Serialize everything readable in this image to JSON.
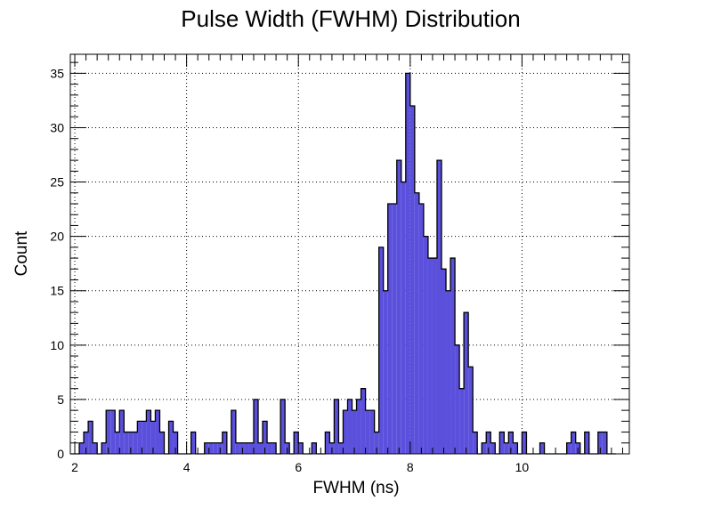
{
  "chart_data": {
    "type": "bar",
    "title": "Pulse Width (FWHM) Distribution",
    "xlabel": "FWHM (ns)",
    "ylabel": "Count",
    "xlim": [
      1.92,
      11.92
    ],
    "ylim": [
      0,
      36.75
    ],
    "grid": true,
    "legend": "none",
    "bin_width": 0.08,
    "x_ticks": [
      2,
      4,
      6,
      8,
      10
    ],
    "y_ticks": [
      0,
      5,
      10,
      15,
      20,
      25,
      30,
      35
    ],
    "x_tick_labels": [
      "2",
      "4",
      "6",
      "8",
      "10"
    ],
    "y_tick_labels": [
      "0",
      "5",
      "10",
      "15",
      "20",
      "25",
      "30",
      "35"
    ],
    "bins": [
      [
        1.92,
        0
      ],
      [
        2.0,
        0
      ],
      [
        2.08,
        1
      ],
      [
        2.16,
        2
      ],
      [
        2.24,
        3
      ],
      [
        2.32,
        1
      ],
      [
        2.4,
        0
      ],
      [
        2.48,
        1
      ],
      [
        2.56,
        4
      ],
      [
        2.64,
        4
      ],
      [
        2.72,
        2
      ],
      [
        2.8,
        4
      ],
      [
        2.88,
        2
      ],
      [
        2.96,
        2
      ],
      [
        3.04,
        2
      ],
      [
        3.12,
        3
      ],
      [
        3.2,
        3
      ],
      [
        3.28,
        4
      ],
      [
        3.36,
        3
      ],
      [
        3.44,
        4
      ],
      [
        3.52,
        2
      ],
      [
        3.6,
        0
      ],
      [
        3.68,
        3
      ],
      [
        3.76,
        2
      ],
      [
        3.84,
        0
      ],
      [
        3.92,
        0
      ],
      [
        4.0,
        0
      ],
      [
        4.08,
        2
      ],
      [
        4.16,
        0
      ],
      [
        4.24,
        0
      ],
      [
        4.32,
        1
      ],
      [
        4.4,
        1
      ],
      [
        4.48,
        1
      ],
      [
        4.56,
        1
      ],
      [
        4.64,
        2
      ],
      [
        4.72,
        0
      ],
      [
        4.8,
        4
      ],
      [
        4.88,
        1
      ],
      [
        4.96,
        1
      ],
      [
        5.04,
        1
      ],
      [
        5.12,
        1
      ],
      [
        5.2,
        5
      ],
      [
        5.28,
        1
      ],
      [
        5.36,
        3
      ],
      [
        5.44,
        1
      ],
      [
        5.52,
        1
      ],
      [
        5.6,
        0
      ],
      [
        5.68,
        5
      ],
      [
        5.76,
        1
      ],
      [
        5.84,
        0
      ],
      [
        5.92,
        2
      ],
      [
        6.0,
        1
      ],
      [
        6.08,
        0
      ],
      [
        6.16,
        0
      ],
      [
        6.24,
        1
      ],
      [
        6.32,
        0
      ],
      [
        6.4,
        0
      ],
      [
        6.48,
        2
      ],
      [
        6.56,
        1
      ],
      [
        6.64,
        5
      ],
      [
        6.72,
        1
      ],
      [
        6.8,
        4
      ],
      [
        6.88,
        5
      ],
      [
        6.96,
        4
      ],
      [
        7.04,
        5
      ],
      [
        7.12,
        6
      ],
      [
        7.2,
        4
      ],
      [
        7.28,
        4
      ],
      [
        7.36,
        2
      ],
      [
        7.44,
        19
      ],
      [
        7.52,
        15
      ],
      [
        7.6,
        23
      ],
      [
        7.68,
        23
      ],
      [
        7.76,
        27
      ],
      [
        7.84,
        25
      ],
      [
        7.92,
        35
      ],
      [
        8.0,
        32
      ],
      [
        8.08,
        24
      ],
      [
        8.16,
        23
      ],
      [
        8.24,
        20
      ],
      [
        8.32,
        18
      ],
      [
        8.4,
        18
      ],
      [
        8.48,
        27
      ],
      [
        8.56,
        17
      ],
      [
        8.64,
        15
      ],
      [
        8.72,
        18
      ],
      [
        8.8,
        10
      ],
      [
        8.88,
        6
      ],
      [
        8.96,
        13
      ],
      [
        9.04,
        8
      ],
      [
        9.12,
        2
      ],
      [
        9.2,
        0
      ],
      [
        9.28,
        1
      ],
      [
        9.36,
        2
      ],
      [
        9.44,
        1
      ],
      [
        9.52,
        0
      ],
      [
        9.6,
        2
      ],
      [
        9.68,
        1
      ],
      [
        9.76,
        2
      ],
      [
        9.84,
        1
      ],
      [
        9.92,
        0
      ],
      [
        10.0,
        2
      ],
      [
        10.08,
        0
      ],
      [
        10.16,
        0
      ],
      [
        10.24,
        0
      ],
      [
        10.32,
        1
      ],
      [
        10.4,
        0
      ],
      [
        10.48,
        0
      ],
      [
        10.56,
        0
      ],
      [
        10.64,
        0
      ],
      [
        10.72,
        0
      ],
      [
        10.8,
        1
      ],
      [
        10.88,
        2
      ],
      [
        10.96,
        1
      ],
      [
        11.04,
        0
      ],
      [
        11.12,
        2
      ],
      [
        11.2,
        0
      ],
      [
        11.28,
        0
      ],
      [
        11.36,
        2
      ],
      [
        11.44,
        2
      ],
      [
        11.52,
        0
      ],
      [
        11.6,
        0
      ]
    ]
  },
  "colors": {
    "bar_fill": "#5b50dc",
    "bar_edge": "#000000",
    "grid": "#000000",
    "background": "#ffffff"
  }
}
